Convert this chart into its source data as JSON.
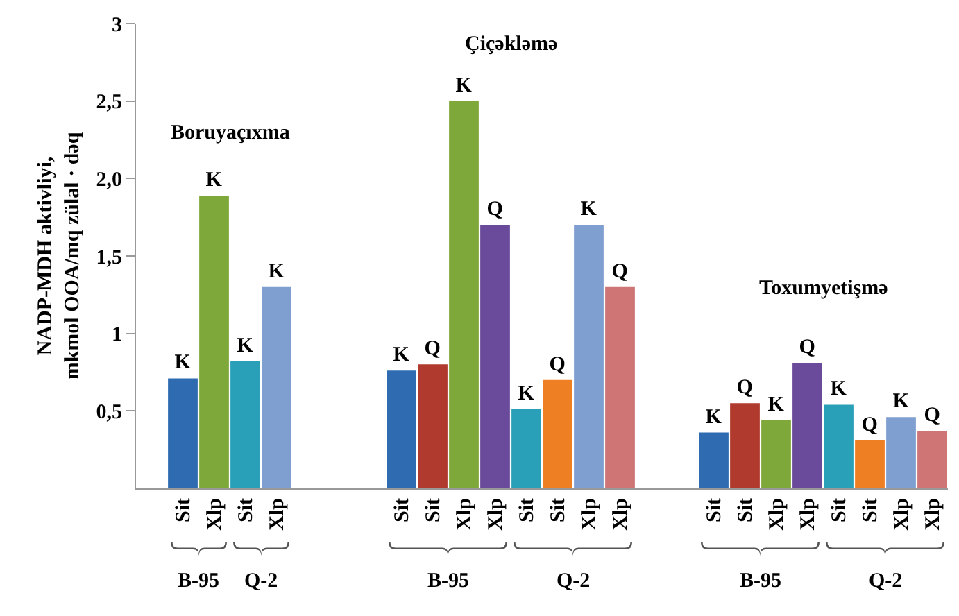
{
  "chart_data": {
    "type": "bar",
    "ylabel": "NADP-MDH aktivliyi,\nmkmol OOA/mq zülal · dəq",
    "categories": [
      "Sit",
      "Xlp",
      "Sit",
      "Xlp",
      null,
      null,
      null,
      "Sit",
      "Sit",
      "Xlp",
      "Xlp",
      "Sit",
      "Sit",
      "Xlp",
      "Xlp",
      null,
      null,
      "Sit",
      "Sit",
      "Xlp",
      "Xlp",
      "Sit",
      "Sit",
      "Xlp",
      "Xlp"
    ],
    "values": [
      0.71,
      1.89,
      0.82,
      1.3,
      null,
      null,
      null,
      0.76,
      0.8,
      2.5,
      1.7,
      0.51,
      0.7,
      1.7,
      1.3,
      null,
      null,
      0.36,
      0.55,
      0.44,
      0.81,
      0.54,
      0.31,
      0.46,
      0.37
    ],
    "colors": [
      "#2e6bb0",
      "#7fa83a",
      "#2aa0b8",
      "#7f9fd0",
      null,
      null,
      null,
      "#2e6bb0",
      "#b03a2e",
      "#7fa83a",
      "#6a4a9a",
      "#2aa0b8",
      "#ee7f22",
      "#7f9fd0",
      "#cf7575",
      null,
      null,
      "#2e6bb0",
      "#b03a2e",
      "#7fa83a",
      "#6a4a9a",
      "#2aa0b8",
      "#ee7f22",
      "#7f9fd0",
      "#cf7575"
    ],
    "value_labels": [
      "K",
      "K",
      "K",
      "K",
      null,
      null,
      null,
      "K",
      "Q",
      "K",
      "Q",
      "K",
      "Q",
      "K",
      "Q",
      null,
      null,
      "K",
      "Q",
      "K",
      "Q",
      "K",
      "Q",
      "K",
      "Q"
    ],
    "ylim": [
      0,
      3
    ],
    "yticks": [
      {
        "value": 0.5,
        "label": "0,5"
      },
      1,
      {
        "value": 1.5,
        "label": "1,5"
      },
      {
        "value": 2,
        "label": "2,0"
      },
      {
        "value": 2.5,
        "label": "2,5"
      },
      3
    ],
    "grid": false,
    "annotations": [
      "Boruyaçıxma",
      "Çiçəkləmə",
      "Toxumyetişmə",
      "B-95",
      "Q-2",
      "B-95",
      "Q-2",
      "B-95",
      "Q-2"
    ]
  }
}
